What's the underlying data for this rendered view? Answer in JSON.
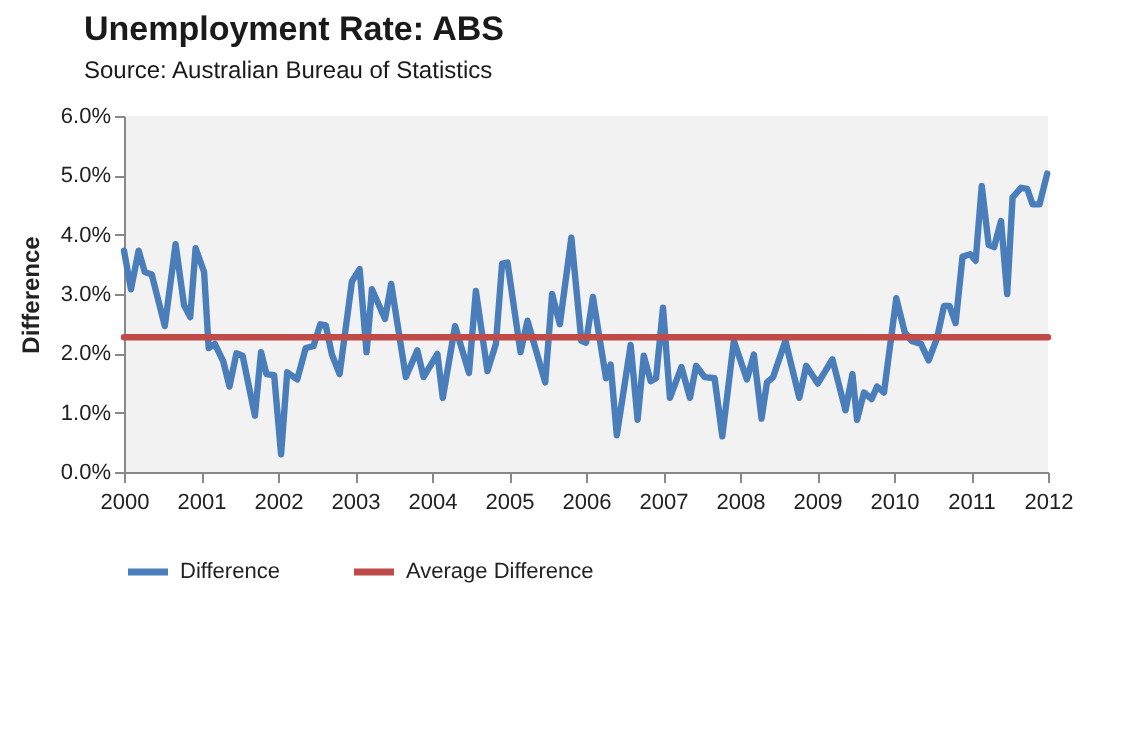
{
  "chart_data": {
    "type": "line",
    "title": "Unemployment Rate: ABS",
    "subtitle": "Source: Australian Bureau of Statistics",
    "ylabel": "Difference",
    "xlim": [
      2000,
      2012
    ],
    "xticks": [
      2000,
      2001,
      2002,
      2003,
      2004,
      2005,
      2006,
      2007,
      2008,
      2009,
      2010,
      2011,
      2012
    ],
    "ylim": [
      0,
      6
    ],
    "yticks": [
      {
        "value": 0,
        "label": "0.0%"
      },
      {
        "value": 1,
        "label": "1.0%"
      },
      {
        "value": 2,
        "label": "2.0%"
      },
      {
        "value": 3,
        "label": "3.0%"
      },
      {
        "value": 4,
        "label": "4.0%"
      },
      {
        "value": 5,
        "label": "5.0%"
      },
      {
        "value": 6,
        "label": "6.0%"
      }
    ],
    "grid": false,
    "legend": "bottom",
    "marker": "none",
    "line_style": "solid",
    "series": [
      {
        "name": "Difference",
        "color": "#4a7ebb",
        "x": [
          2000.0,
          2000.09,
          2000.19,
          2000.27,
          2000.36,
          2000.53,
          2000.67,
          2000.78,
          2000.86,
          2000.93,
          2001.04,
          2001.1,
          2001.18,
          2001.29,
          2001.37,
          2001.46,
          2001.54,
          2001.7,
          2001.78,
          2001.85,
          2001.95,
          2002.04,
          2002.12,
          2002.25,
          2002.36,
          2002.46,
          2002.55,
          2002.62,
          2002.7,
          2002.8,
          2002.96,
          2003.06,
          2003.15,
          2003.22,
          2003.39,
          2003.47,
          2003.66,
          2003.81,
          2003.89,
          2004.07,
          2004.14,
          2004.3,
          2004.48,
          2004.57,
          2004.72,
          2004.83,
          2004.91,
          2004.98,
          2005.15,
          2005.24,
          2005.47,
          2005.56,
          2005.66,
          2005.81,
          2005.94,
          2006.0,
          2006.09,
          2006.26,
          2006.32,
          2006.4,
          2006.58,
          2006.67,
          2006.75,
          2006.84,
          2006.91,
          2007.0,
          2007.09,
          2007.24,
          2007.35,
          2007.43,
          2007.54,
          2007.67,
          2007.77,
          2007.92,
          2008.09,
          2008.18,
          2008.28,
          2008.35,
          2008.43,
          2008.59,
          2008.77,
          2008.86,
          2009.01,
          2009.2,
          2009.37,
          2009.46,
          2009.52,
          2009.61,
          2009.71,
          2009.78,
          2009.87,
          2010.03,
          2010.14,
          2010.23,
          2010.35,
          2010.45,
          2010.56,
          2010.65,
          2010.72,
          2010.8,
          2010.89,
          2010.99,
          2011.06,
          2011.14,
          2011.23,
          2011.3,
          2011.39,
          2011.47,
          2011.54,
          2011.65,
          2011.73,
          2011.8,
          2011.89,
          2011.99
        ],
        "values": [
          3.73,
          3.08,
          3.73,
          3.37,
          3.33,
          2.46,
          3.84,
          2.81,
          2.61,
          3.77,
          3.37,
          2.09,
          2.16,
          1.86,
          1.44,
          2.0,
          1.96,
          0.95,
          2.02,
          1.65,
          1.63,
          0.3,
          1.68,
          1.56,
          2.09,
          2.12,
          2.49,
          2.47,
          1.98,
          1.65,
          3.21,
          3.42,
          2.02,
          3.08,
          2.58,
          3.17,
          1.6,
          2.05,
          1.6,
          1.99,
          1.25,
          2.46,
          1.67,
          3.05,
          1.7,
          2.16,
          3.51,
          3.53,
          2.02,
          2.55,
          1.51,
          3.0,
          2.49,
          3.95,
          2.21,
          2.18,
          2.95,
          1.58,
          1.81,
          0.62,
          2.14,
          0.88,
          1.96,
          1.53,
          1.58,
          2.77,
          1.25,
          1.77,
          1.25,
          1.79,
          1.6,
          1.58,
          0.6,
          2.21,
          1.56,
          1.98,
          0.9,
          1.51,
          1.6,
          2.21,
          1.25,
          1.79,
          1.49,
          1.9,
          1.04,
          1.65,
          0.88,
          1.34,
          1.23,
          1.44,
          1.34,
          2.93,
          2.35,
          2.21,
          2.16,
          1.88,
          2.26,
          2.8,
          2.8,
          2.51,
          3.63,
          3.67,
          3.56,
          4.82,
          3.83,
          3.79,
          4.23,
          3.0,
          4.63,
          4.79,
          4.77,
          4.51,
          4.51,
          5.03
        ]
      },
      {
        "name": "Average Difference",
        "color": "#be4b48",
        "x": [
          2000,
          2012
        ],
        "values": [
          2.27,
          2.27
        ]
      }
    ]
  }
}
